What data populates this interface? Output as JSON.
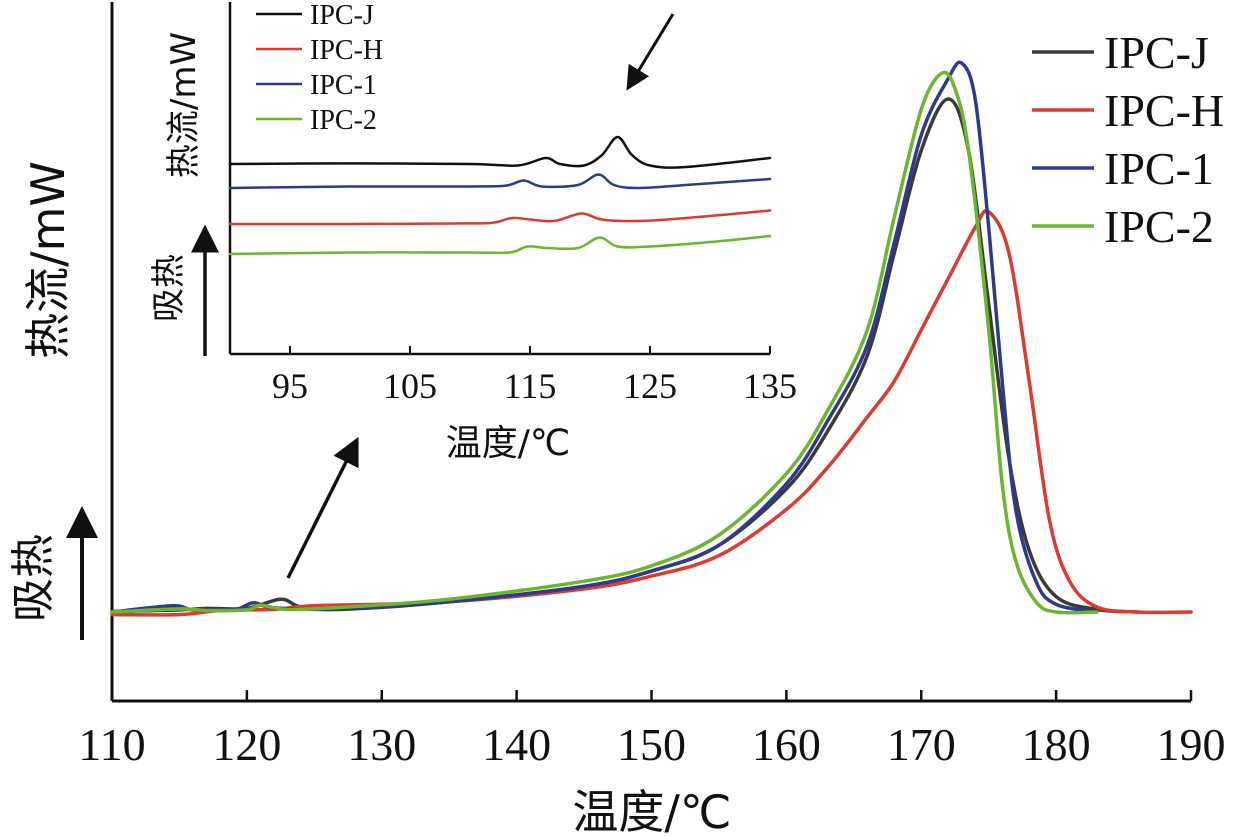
{
  "chart_data": [
    {
      "type": "line",
      "xlabel": "温度/℃",
      "ylabel": "热流/mW",
      "direction_label": "吸热",
      "xlim": [
        110,
        190
      ],
      "xticks": [
        110,
        120,
        130,
        140,
        150,
        160,
        170,
        180,
        190
      ],
      "legend_position": "top-right",
      "series": [
        {
          "name": "IPC-J",
          "color": "#3a3a3a",
          "points": [
            [
              110,
              0.001
            ],
            [
              115,
              0.004
            ],
            [
              117,
              0.007
            ],
            [
              120,
              0.007
            ],
            [
              122.5,
              0.025
            ],
            [
              124,
              0.01
            ],
            [
              127,
              0.005
            ],
            [
              135,
              0.02
            ],
            [
              145,
              0.05
            ],
            [
              150,
              0.08
            ],
            [
              155,
              0.13
            ],
            [
              160,
              0.24
            ],
            [
              163,
              0.35
            ],
            [
              166,
              0.5
            ],
            [
              168,
              0.7
            ],
            [
              170,
              0.9
            ],
            [
              172,
              1.0
            ],
            [
              173.5,
              0.9
            ],
            [
              175,
              0.6
            ],
            [
              176.5,
              0.3
            ],
            [
              178,
              0.12
            ],
            [
              180,
              0.03
            ],
            [
              183,
              0.005
            ],
            [
              186,
              0.0
            ]
          ]
        },
        {
          "name": "IPC-H",
          "color": "#e03a2f",
          "points": [
            [
              110,
              -0.005
            ],
            [
              115,
              -0.005
            ],
            [
              118,
              0.003
            ],
            [
              122,
              0.005
            ],
            [
              125,
              0.012
            ],
            [
              135,
              0.02
            ],
            [
              145,
              0.045
            ],
            [
              150,
              0.07
            ],
            [
              155,
              0.11
            ],
            [
              160,
              0.2
            ],
            [
              163,
              0.28
            ],
            [
              166,
              0.38
            ],
            [
              168,
              0.45
            ],
            [
              170,
              0.55
            ],
            [
              172,
              0.65
            ],
            [
              174,
              0.75
            ],
            [
              175,
              0.78
            ],
            [
              176.5,
              0.7
            ],
            [
              178,
              0.45
            ],
            [
              179.5,
              0.18
            ],
            [
              181,
              0.06
            ],
            [
              183,
              0.01
            ],
            [
              186,
              0.0
            ],
            [
              190,
              0.0
            ]
          ]
        },
        {
          "name": "IPC-1",
          "color": "#2e3a8c",
          "points": [
            [
              110,
              0.0
            ],
            [
              114.5,
              0.012
            ],
            [
              116,
              0.004
            ],
            [
              119,
              0.004
            ],
            [
              120.5,
              0.018
            ],
            [
              122,
              0.008
            ],
            [
              127,
              0.006
            ],
            [
              135,
              0.02
            ],
            [
              145,
              0.05
            ],
            [
              150,
              0.08
            ],
            [
              155,
              0.13
            ],
            [
              160,
              0.25
            ],
            [
              163,
              0.37
            ],
            [
              166,
              0.52
            ],
            [
              168,
              0.72
            ],
            [
              170,
              0.93
            ],
            [
              172,
              1.04
            ],
            [
              173,
              1.07
            ],
            [
              174,
              1.0
            ],
            [
              175,
              0.75
            ],
            [
              176,
              0.45
            ],
            [
              177,
              0.2
            ],
            [
              178.5,
              0.06
            ],
            [
              180,
              0.015
            ],
            [
              183,
              0.0
            ]
          ]
        },
        {
          "name": "IPC-2",
          "color": "#6ab72e",
          "points": [
            [
              110,
              0.0
            ],
            [
              115,
              0.006
            ],
            [
              117,
              0.003
            ],
            [
              120,
              0.004
            ],
            [
              121,
              0.013
            ],
            [
              123,
              0.005
            ],
            [
              127,
              0.009
            ],
            [
              135,
              0.025
            ],
            [
              145,
              0.06
            ],
            [
              150,
              0.09
            ],
            [
              155,
              0.15
            ],
            [
              160,
              0.27
            ],
            [
              163,
              0.39
            ],
            [
              166,
              0.55
            ],
            [
              168,
              0.77
            ],
            [
              170,
              0.98
            ],
            [
              171.5,
              1.05
            ],
            [
              172.5,
              1.02
            ],
            [
              173.5,
              0.9
            ],
            [
              175,
              0.55
            ],
            [
              176,
              0.25
            ],
            [
              177,
              0.1
            ],
            [
              178.5,
              0.02
            ],
            [
              180,
              0.0
            ],
            [
              183,
              0.0
            ]
          ]
        }
      ]
    },
    {
      "type": "line",
      "xlabel": "温度/℃",
      "ylabel": "热流/mW",
      "direction_label": "吸热",
      "xlim": [
        90,
        135
      ],
      "xticks": [
        95,
        105,
        115,
        125,
        135
      ],
      "legend_position": "top-left",
      "series": [
        {
          "name": "IPC-J",
          "color": "#111111",
          "points": [
            [
              90,
              3.0
            ],
            [
              100,
              3.02
            ],
            [
              110,
              3.0
            ],
            [
              114,
              2.95
            ],
            [
              116.3,
              3.2
            ],
            [
              117.5,
              3.0
            ],
            [
              119.5,
              2.95
            ],
            [
              121,
              3.3
            ],
            [
              122.3,
              3.9
            ],
            [
              123.5,
              3.3
            ],
            [
              125,
              2.95
            ],
            [
              128,
              2.9
            ],
            [
              135,
              3.2
            ]
          ]
        },
        {
          "name": "IPC-H",
          "color": "#e03a2f",
          "points": [
            [
              90,
              1.0
            ],
            [
              100,
              1.0
            ],
            [
              110,
              1.02
            ],
            [
              112,
              1.05
            ],
            [
              113.5,
              1.2
            ],
            [
              115,
              1.15
            ],
            [
              117,
              1.1
            ],
            [
              119.3,
              1.35
            ],
            [
              121,
              1.15
            ],
            [
              124,
              1.1
            ],
            [
              128,
              1.2
            ],
            [
              135,
              1.45
            ]
          ]
        },
        {
          "name": "IPC-1",
          "color": "#2e3a8c",
          "points": [
            [
              90,
              2.2
            ],
            [
              100,
              2.25
            ],
            [
              110,
              2.25
            ],
            [
              113,
              2.28
            ],
            [
              114.5,
              2.45
            ],
            [
              116,
              2.25
            ],
            [
              119,
              2.3
            ],
            [
              120.7,
              2.65
            ],
            [
              122,
              2.3
            ],
            [
              124,
              2.2
            ],
            [
              128,
              2.3
            ],
            [
              135,
              2.5
            ]
          ]
        },
        {
          "name": "IPC-2",
          "color": "#6ab72e",
          "points": [
            [
              90,
              0.0
            ],
            [
              100,
              0.05
            ],
            [
              110,
              0.05
            ],
            [
              113.3,
              0.05
            ],
            [
              114.8,
              0.25
            ],
            [
              116.5,
              0.2
            ],
            [
              119,
              0.2
            ],
            [
              120.8,
              0.55
            ],
            [
              122.3,
              0.25
            ],
            [
              125,
              0.25
            ],
            [
              130,
              0.4
            ],
            [
              135,
              0.6
            ]
          ]
        }
      ]
    }
  ]
}
